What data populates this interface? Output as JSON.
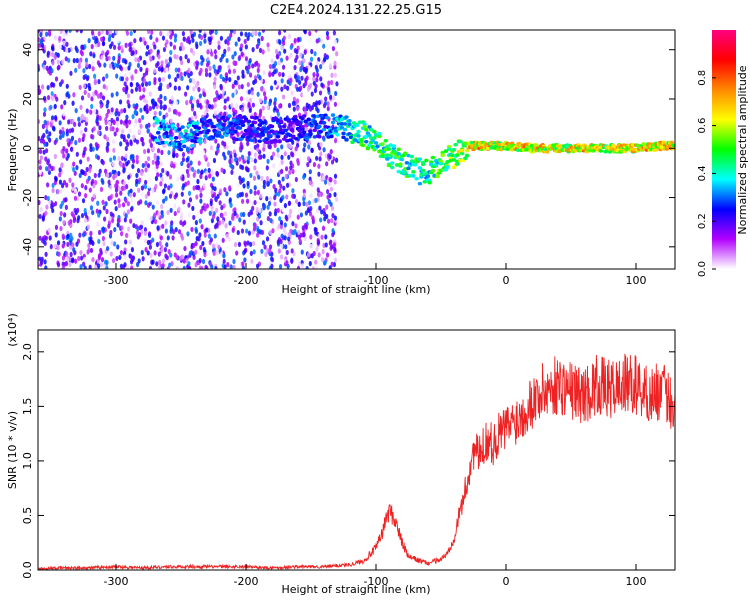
{
  "title": "C2E4.2024.131.22.25.G15",
  "chart_data": [
    {
      "type": "heatmap",
      "xlabel": "Height of straight line (km)",
      "ylabel": "Frequency (Hz)",
      "xlim": [
        -360,
        130
      ],
      "ylim": [
        -49,
        48
      ],
      "xticks": [
        -300,
        -200,
        -100,
        0,
        100
      ],
      "yticks": [
        -40,
        -20,
        0,
        20,
        40
      ],
      "colorbar": {
        "label": "Normalized spectral amplitude",
        "range": [
          0,
          1
        ],
        "ticks": [
          0.0,
          0.2,
          0.4,
          0.6,
          0.8
        ],
        "colors": [
          "#ffffff",
          "#b200ff",
          "#0000ff",
          "#00ffff",
          "#00ff00",
          "#ffff00",
          "#ff8800",
          "#ff0000",
          "#ff0080"
        ]
      },
      "noise_region": {
        "x_from": -360,
        "x_to": -130,
        "y_range": [
          -49,
          48
        ],
        "amplitude": 0.3
      },
      "signal_track": [
        {
          "x": -270,
          "y": 8,
          "amplitude": 0.45
        },
        {
          "x": -260,
          "y": 5,
          "amplitude": 0.4
        },
        {
          "x": -250,
          "y": 4,
          "amplitude": 0.45
        },
        {
          "x": -240,
          "y": 6,
          "amplitude": 0.4
        },
        {
          "x": -230,
          "y": 8,
          "amplitude": 0.35
        },
        {
          "x": -215,
          "y": 9,
          "amplitude": 0.35
        },
        {
          "x": -200,
          "y": 8,
          "amplitude": 0.3
        },
        {
          "x": -180,
          "y": 7,
          "amplitude": 0.3
        },
        {
          "x": -160,
          "y": 8,
          "amplitude": 0.3
        },
        {
          "x": -140,
          "y": 9,
          "amplitude": 0.35
        },
        {
          "x": -125,
          "y": 8,
          "amplitude": 0.45
        },
        {
          "x": -110,
          "y": 6,
          "amplitude": 0.55
        },
        {
          "x": -100,
          "y": 2,
          "amplitude": 0.55
        },
        {
          "x": -90,
          "y": -2,
          "amplitude": 0.55
        },
        {
          "x": -80,
          "y": -6,
          "amplitude": 0.55
        },
        {
          "x": -70,
          "y": -9,
          "amplitude": 0.55
        },
        {
          "x": -60,
          "y": -10,
          "amplitude": 0.5
        },
        {
          "x": -50,
          "y": -6,
          "amplitude": 0.6
        },
        {
          "x": -40,
          "y": -3,
          "amplitude": 0.65
        },
        {
          "x": -30,
          "y": 1,
          "amplitude": 0.75
        },
        {
          "x": -20,
          "y": 1,
          "amplitude": 0.85
        },
        {
          "x": -10,
          "y": 1,
          "amplitude": 0.8
        },
        {
          "x": 0,
          "y": 1,
          "amplitude": 0.8
        },
        {
          "x": 20,
          "y": 0,
          "amplitude": 0.8
        },
        {
          "x": 40,
          "y": 0,
          "amplitude": 0.75
        },
        {
          "x": 60,
          "y": 0,
          "amplitude": 0.8
        },
        {
          "x": 80,
          "y": 0,
          "amplitude": 0.75
        },
        {
          "x": 100,
          "y": 0,
          "amplitude": 0.8
        },
        {
          "x": 120,
          "y": 1,
          "amplitude": 0.8
        },
        {
          "x": 130,
          "y": 1,
          "amplitude": 0.75
        }
      ]
    },
    {
      "type": "line",
      "xlabel": "Height of straight line (km)",
      "ylabel": "SNR (10 * v/v)",
      "yscale_label": "(x10⁴)",
      "xlim": [
        -360,
        130
      ],
      "ylim": [
        0,
        2.2
      ],
      "xticks": [
        -300,
        -200,
        -100,
        0,
        100
      ],
      "yticks": [
        "0.0",
        "0.5",
        "1.0",
        "1.5",
        "2.0"
      ],
      "series": [
        {
          "color": "#ee2222",
          "x": [
            -360,
            -340,
            -320,
            -300,
            -280,
            -260,
            -240,
            -220,
            -200,
            -180,
            -160,
            -140,
            -120,
            -110,
            -100,
            -95,
            -90,
            -85,
            -80,
            -75,
            -70,
            -65,
            -60,
            -55,
            -50,
            -45,
            -40,
            -35,
            -30,
            -25,
            -20,
            -15,
            -10,
            -5,
            0,
            10,
            20,
            30,
            40,
            50,
            60,
            70,
            80,
            90,
            100,
            110,
            120,
            130
          ],
          "values": [
            0.01,
            0.02,
            0.02,
            0.03,
            0.02,
            0.03,
            0.03,
            0.03,
            0.03,
            0.02,
            0.03,
            0.03,
            0.05,
            0.08,
            0.2,
            0.35,
            0.55,
            0.45,
            0.25,
            0.12,
            0.1,
            0.08,
            0.06,
            0.08,
            0.1,
            0.15,
            0.3,
            0.55,
            0.8,
            1.1,
            1.05,
            1.2,
            1.15,
            1.25,
            1.3,
            1.4,
            1.55,
            1.65,
            1.7,
            1.65,
            1.6,
            1.7,
            1.65,
            1.7,
            1.7,
            1.6,
            1.65,
            1.5
          ]
        }
      ]
    }
  ]
}
